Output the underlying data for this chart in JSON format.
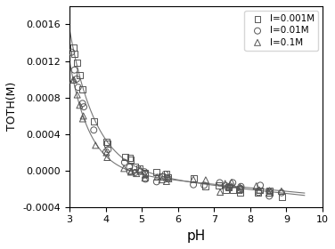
{
  "title": "",
  "xlabel": "pH",
  "ylabel": "TOTH(M)",
  "xlim": [
    3,
    10
  ],
  "ylim": [
    -0.0004,
    0.0018
  ],
  "yticks": [
    -0.0004,
    0.0,
    0.0004,
    0.0008,
    0.0012,
    0.0016
  ],
  "xticks": [
    3,
    4,
    5,
    6,
    7,
    8,
    9,
    10
  ],
  "legend_labels": [
    "I=0.001M",
    "I=0.01M",
    "I=0.1M"
  ],
  "markers": [
    "s",
    "o",
    "^"
  ],
  "marker_size": 5,
  "background_color": "#ffffff",
  "line_color": "#777777",
  "marker_color": "#555555",
  "figsize": [
    3.76,
    2.8
  ],
  "dpi": 100
}
